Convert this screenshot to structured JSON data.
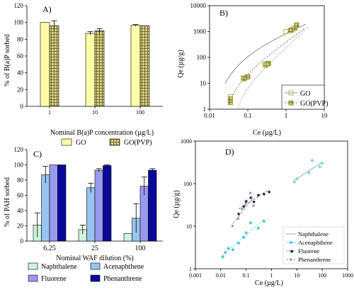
{
  "colors": {
    "go_fill": "#ffffa8",
    "gopvp_fill": "#dcd27a",
    "naph_fill": "#ccf5dc",
    "acen_fill": "#99c4ef",
    "fluo_fill": "#9999ee",
    "phen_fill": "#0a0a99",
    "go_marker": "#b8b060",
    "gopvp_marker": "#9a9a30",
    "naph_line": "#999999",
    "acen_marker": "#44c8d8",
    "fluo_marker": "#3355cc",
    "phen_marker": "#7777aa"
  },
  "chart_data": [
    {
      "panel": "A)",
      "type": "bar",
      "ylabel": "% of B(a)P sorbed",
      "xlabel": "Nominal B(a)P concentration (µg/L)",
      "categories": [
        "1",
        "10",
        "100"
      ],
      "ylim": [
        0,
        120
      ],
      "yticks": [
        "0",
        "20",
        "40",
        "60",
        "80",
        "100",
        "120"
      ],
      "series": [
        {
          "name": "GO",
          "values": [
            100,
            87,
            96.5
          ],
          "errors": [
            0,
            2,
            1
          ]
        },
        {
          "name": "GO(PVP)",
          "values": [
            96,
            90,
            96
          ],
          "errors": [
            6,
            2.5,
            0
          ]
        }
      ],
      "legend": "bottom"
    },
    {
      "panel": "B)",
      "type": "scatter",
      "ylabel": "Qe (µg/g)",
      "xlabel": "Ce (µg/L)",
      "xscale": "log",
      "yscale": "log",
      "xlim": [
        0.01,
        10
      ],
      "ylim": [
        1,
        10000
      ],
      "xticks": [
        "0.01",
        "0.1",
        "1",
        "10"
      ],
      "yticks": [
        "1",
        "10",
        "100",
        "1000",
        "10000"
      ],
      "series": [
        {
          "name": "GO",
          "x": [
            0.035,
            0.035,
            0.075,
            0.09,
            0.28,
            0.32,
            1.0,
            1.4,
            1.5
          ],
          "y": [
            2.1,
            3.0,
            16,
            17,
            55,
            60,
            1000,
            1150,
            1250
          ]
        },
        {
          "name": "GO(PVP)",
          "x": [
            0.035,
            0.035,
            0.08,
            0.1,
            0.3,
            0.35,
            1.3,
            1.7,
            1.9
          ],
          "y": [
            1.8,
            2.5,
            15,
            18,
            50,
            58,
            1100,
            1350,
            1800
          ]
        }
      ],
      "legend": "bottom-right"
    },
    {
      "panel": "C)",
      "type": "bar",
      "ylabel": "% of PAH sorbed",
      "xlabel": "Nominal WAF dilution (%)",
      "categories": [
        "6.25",
        "25",
        "100"
      ],
      "ylim": [
        0,
        120
      ],
      "yticks": [
        "0",
        "20",
        "40",
        "60",
        "80",
        "100",
        "120"
      ],
      "series": [
        {
          "name": "Naphthalene",
          "values": [
            21,
            15,
            10
          ],
          "errors": [
            16,
            6,
            0
          ]
        },
        {
          "name": "Acenaphthene",
          "values": [
            87,
            70,
            30
          ],
          "errors": [
            11,
            6,
            19
          ]
        },
        {
          "name": "Fluorene",
          "values": [
            100,
            93,
            72
          ],
          "errors": [
            0,
            2,
            12
          ]
        },
        {
          "name": "Phenanthrene",
          "values": [
            100,
            99,
            93
          ],
          "errors": [
            0,
            1,
            2
          ]
        }
      ],
      "legend": "bottom"
    },
    {
      "panel": "D)",
      "type": "scatter",
      "ylabel": "Qe (µg/g)",
      "xlabel": "Ce (µg/L)",
      "xscale": "log",
      "yscale": "log",
      "xlim": [
        0.001,
        1000
      ],
      "ylim": [
        1,
        1000
      ],
      "xticks": [
        "0.001",
        "0.01",
        "0.1",
        "1",
        "10",
        "100",
        "1000"
      ],
      "yticks": [
        "1",
        "10",
        "100",
        "1000"
      ],
      "series": [
        {
          "name": "Naphthalene",
          "x": [
            8,
            10,
            30,
            40,
            80,
            100
          ],
          "y": [
            110,
            130,
            180,
            350,
            250,
            300
          ]
        },
        {
          "name": "Acenaphthene",
          "x": [
            0.012,
            0.015,
            0.02,
            0.03,
            0.05,
            0.08,
            0.1,
            0.15,
            0.3,
            0.5
          ],
          "y": [
            1.9,
            2.4,
            3.0,
            2.8,
            4.0,
            5.5,
            7.0,
            12,
            9,
            13
          ]
        },
        {
          "name": "Fluorene",
          "x": [
            0.05,
            0.08,
            0.1,
            0.15,
            0.2,
            0.3,
            0.5,
            0.8
          ],
          "y": [
            20,
            30,
            40,
            48,
            38,
            55,
            58,
            65
          ]
        },
        {
          "name": "Phenanthrene",
          "x": [
            0.03,
            0.05,
            0.07,
            0.1,
            0.15,
            0.2
          ],
          "y": [
            10,
            15,
            25,
            35,
            60,
            30
          ]
        }
      ],
      "legend": "bottom-right"
    }
  ]
}
